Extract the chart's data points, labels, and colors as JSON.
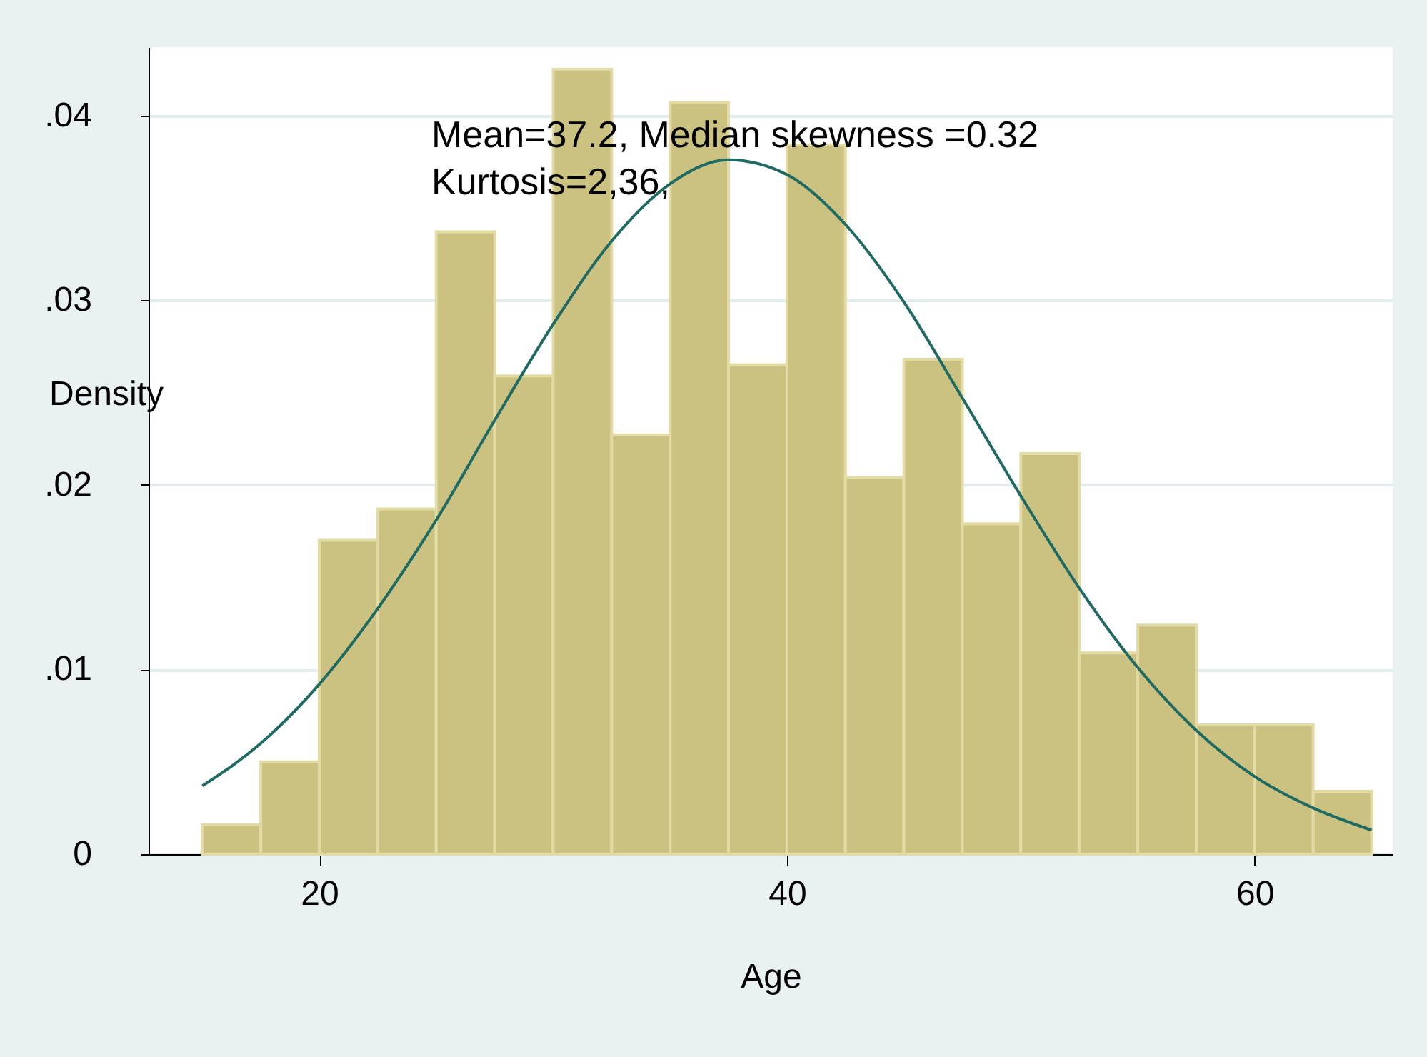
{
  "chart_data": {
    "type": "histogram",
    "xlabel": "Age",
    "ylabel": "Density",
    "bins": [
      15,
      17.5,
      20,
      22.5,
      25,
      27.5,
      30,
      32.5,
      35,
      37.5,
      40,
      42.5,
      45,
      47.5,
      50,
      52.5,
      55,
      57.5,
      60,
      62.5,
      65
    ],
    "values": [
      0.0016,
      0.005,
      0.017,
      0.0187,
      0.0337,
      0.0259,
      0.0425,
      0.0227,
      0.0407,
      0.0265,
      0.0384,
      0.0204,
      0.0268,
      0.0179,
      0.0217,
      0.0109,
      0.0124,
      0.007,
      0.007,
      0.0034
    ],
    "color": "#cbc281",
    "series": [
      {
        "type": "line",
        "color": "#1f6a63",
        "x": [
          15,
          17.5,
          20,
          22.5,
          25,
          27.5,
          30,
          32.5,
          35,
          37.5,
          40,
          42.5,
          45,
          47.5,
          50,
          52.5,
          55,
          57.5,
          60,
          62.5,
          65
        ],
        "values": [
          0.0037,
          0.006,
          0.0092,
          0.0133,
          0.0181,
          0.0235,
          0.0287,
          0.0332,
          0.0363,
          0.0376,
          0.0368,
          0.0341,
          0.0299,
          0.0247,
          0.0194,
          0.0144,
          0.0101,
          0.0067,
          0.0042,
          0.0025,
          0.0013
        ]
      }
    ],
    "annotations": [
      "Mean=37.2, Median skewness =0.32",
      "Kurtosis=2,36,"
    ],
    "xlim": [
      12.7,
      65.9
    ],
    "ylim": [
      0,
      0.0437
    ],
    "xticks": [
      20,
      40,
      60
    ],
    "yticks": [
      0,
      {
        "value": 0.01,
        "label": ".01"
      },
      {
        "value": 0.02,
        "label": ".02"
      },
      {
        "value": 0.03,
        "label": ".03"
      },
      {
        "value": 0.04,
        "label": ".04"
      }
    ],
    "grid": "y",
    "legend": false,
    "marker": "none",
    "line_style": "solid"
  }
}
